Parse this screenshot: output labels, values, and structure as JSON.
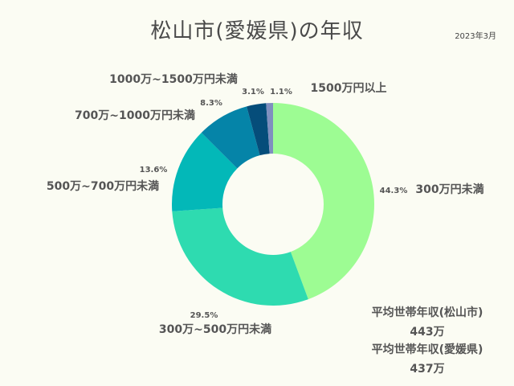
{
  "title": "松山市(愛媛県)の年収",
  "date": "2023年3月",
  "chart_data": {
    "type": "pie",
    "donut": true,
    "title": "松山市(愛媛県)の年収",
    "categories": [
      "300万円未満",
      "300万~500万円未満",
      "500万~700万円未満",
      "700万~1000万円未満",
      "1000万~1500万円未満",
      "1500万円以上"
    ],
    "values": [
      44.3,
      29.5,
      13.6,
      8.3,
      3.1,
      1.1
    ],
    "value_labels": [
      "44.3%",
      "29.5%",
      "13.6%",
      "8.3%",
      "3.1%",
      "1.1%"
    ],
    "colors": [
      "#9dfc93",
      "#2edbb0",
      "#03b8b8",
      "#0584a8",
      "#054d7a",
      "#7f8fbf"
    ]
  },
  "stats": [
    {
      "label": "平均世帯年収(松山市)",
      "value": "443万"
    },
    {
      "label": "平均世帯年収(愛媛県)",
      "value": "437万"
    }
  ]
}
